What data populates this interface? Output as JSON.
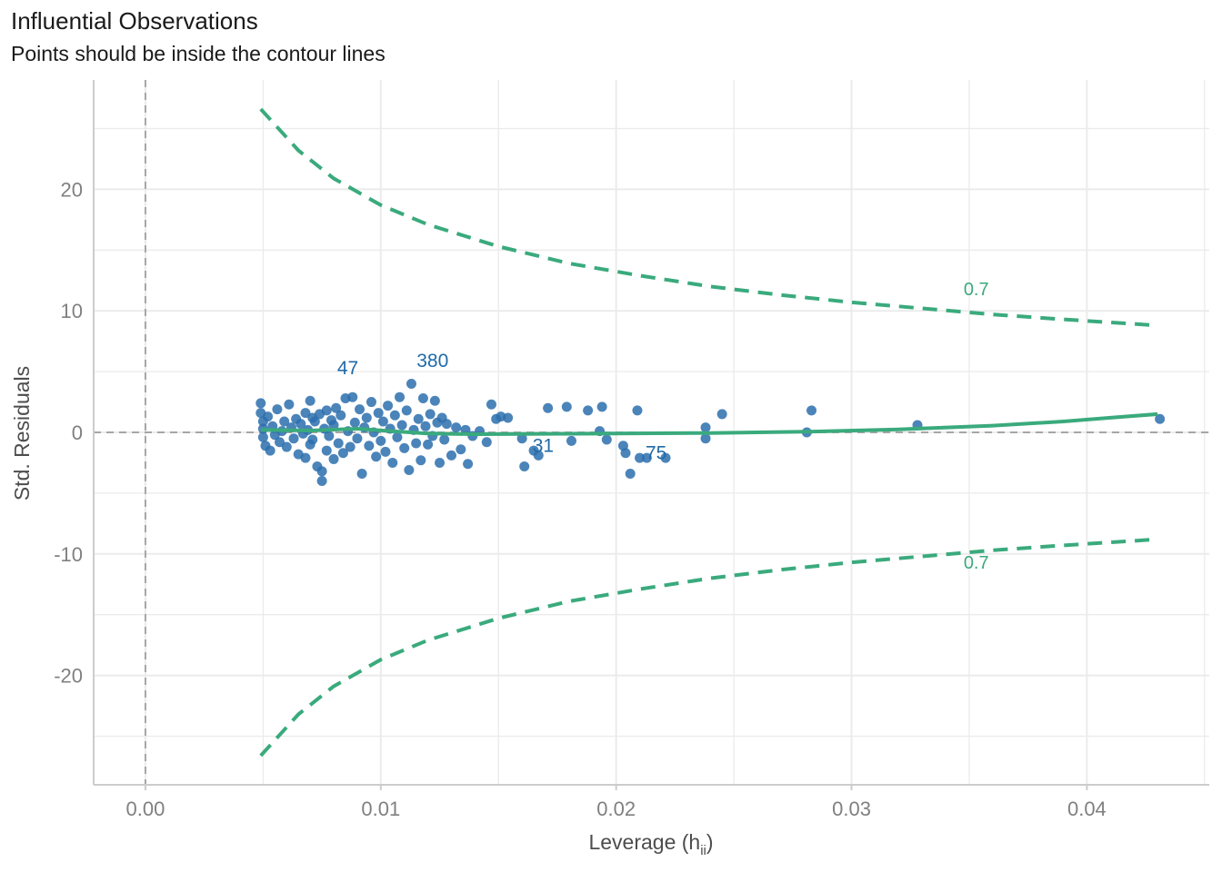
{
  "header": {
    "title": "Influential Observations",
    "subtitle": "Points should be inside the contour lines"
  },
  "chart_data": {
    "type": "scatter",
    "title": "Influential Observations",
    "subtitle": "Points should be inside the contour lines",
    "xlabel": "Leverage (h",
    "xlabel_subscript": "ii",
    "xlabel_close": ")",
    "ylabel": "Std. Residuals",
    "xlim": [
      -0.0022,
      0.0452
    ],
    "ylim": [
      -29,
      29
    ],
    "x_ticks": [
      0.0,
      0.01,
      0.02,
      0.03,
      0.04
    ],
    "x_tick_labels": [
      "0.00",
      "0.01",
      "0.02",
      "0.03",
      "0.04"
    ],
    "y_ticks": [
      -20,
      -10,
      0,
      10,
      20
    ],
    "y_tick_labels": [
      "-20",
      "-10",
      "0",
      "10",
      "20"
    ],
    "grid": true,
    "reference_lines": {
      "x": 0,
      "y": 0
    },
    "colors": {
      "points": "#2c6fad",
      "point_labels": "#1f6aa8",
      "smooth": "#3aaa7d",
      "contour": "#3aaa7d",
      "reference": "#a6a6a6",
      "grid": "#ebebeb"
    },
    "contour": {
      "level_label": "0.7",
      "x": [
        0.0049,
        0.0065,
        0.008,
        0.01,
        0.012,
        0.015,
        0.018,
        0.021,
        0.024,
        0.027,
        0.03,
        0.033,
        0.036,
        0.039,
        0.043
      ],
      "upper": [
        26.6,
        23.2,
        20.9,
        18.7,
        17.1,
        15.3,
        13.9,
        12.9,
        12.0,
        11.3,
        10.7,
        10.2,
        9.7,
        9.3,
        8.8
      ],
      "lower": [
        -26.6,
        -23.2,
        -20.9,
        -18.7,
        -17.1,
        -15.3,
        -13.9,
        -12.9,
        -12.0,
        -11.3,
        -10.7,
        -10.2,
        -9.7,
        -9.3,
        -8.8
      ],
      "label_positions": [
        {
          "text": "0.7",
          "x": 0.0353,
          "y": 11.3
        },
        {
          "text": "0.7",
          "x": 0.0353,
          "y": -11.2
        }
      ]
    },
    "smooth_line": {
      "x": [
        0.0049,
        0.007,
        0.009,
        0.0105,
        0.012,
        0.014,
        0.017,
        0.02,
        0.024,
        0.028,
        0.032,
        0.036,
        0.039,
        0.041,
        0.043
      ],
      "y": [
        0.2,
        0.15,
        0.3,
        0.1,
        -0.1,
        -0.15,
        -0.12,
        -0.1,
        -0.05,
        0.05,
        0.25,
        0.55,
        0.9,
        1.2,
        1.5
      ]
    },
    "points": [
      {
        "x": 0.0049,
        "y": 2.4
      },
      {
        "x": 0.0049,
        "y": 1.6
      },
      {
        "x": 0.005,
        "y": 0.9
      },
      {
        "x": 0.005,
        "y": 0.3
      },
      {
        "x": 0.005,
        "y": -0.4
      },
      {
        "x": 0.0051,
        "y": -1.1
      },
      {
        "x": 0.0052,
        "y": 1.3
      },
      {
        "x": 0.0053,
        "y": -1.5
      },
      {
        "x": 0.0054,
        "y": 0.5
      },
      {
        "x": 0.0055,
        "y": -0.2
      },
      {
        "x": 0.0056,
        "y": 1.9
      },
      {
        "x": 0.0057,
        "y": -0.8
      },
      {
        "x": 0.0058,
        "y": 0.1
      },
      {
        "x": 0.0059,
        "y": 0.9
      },
      {
        "x": 0.006,
        "y": -1.2
      },
      {
        "x": 0.0061,
        "y": 2.3
      },
      {
        "x": 0.0062,
        "y": 0.4
      },
      {
        "x": 0.0063,
        "y": -0.5
      },
      {
        "x": 0.0064,
        "y": 1.1
      },
      {
        "x": 0.0065,
        "y": -1.8
      },
      {
        "x": 0.0066,
        "y": 0.7
      },
      {
        "x": 0.0067,
        "y": -0.1
      },
      {
        "x": 0.0068,
        "y": 1.6
      },
      {
        "x": 0.0068,
        "y": -2.1
      },
      {
        "x": 0.0069,
        "y": 0.2
      },
      {
        "x": 0.007,
        "y": 2.6
      },
      {
        "x": 0.007,
        "y": -1.0
      },
      {
        "x": 0.0071,
        "y": 1.2
      },
      {
        "x": 0.0071,
        "y": -0.6
      },
      {
        "x": 0.0072,
        "y": 0.9
      },
      {
        "x": 0.0073,
        "y": -2.8
      },
      {
        "x": 0.0074,
        "y": 1.5
      },
      {
        "x": 0.0075,
        "y": -4.0
      },
      {
        "x": 0.0075,
        "y": -3.2
      },
      {
        "x": 0.0076,
        "y": 0.3
      },
      {
        "x": 0.0077,
        "y": -1.5
      },
      {
        "x": 0.0077,
        "y": 1.8
      },
      {
        "x": 0.0078,
        "y": -0.3
      },
      {
        "x": 0.0079,
        "y": 1.0
      },
      {
        "x": 0.008,
        "y": -2.2
      },
      {
        "x": 0.008,
        "y": 0.6
      },
      {
        "x": 0.0081,
        "y": 2.0
      },
      {
        "x": 0.0082,
        "y": -0.9
      },
      {
        "x": 0.0083,
        "y": 1.4
      },
      {
        "x": 0.0084,
        "y": -1.7
      },
      {
        "x": 0.0085,
        "y": 2.8
      },
      {
        "x": 0.0086,
        "y": 0.1
      },
      {
        "x": 0.0087,
        "y": -1.2
      },
      {
        "x": 0.0088,
        "y": 2.9
      },
      {
        "x": 0.0089,
        "y": 0.8
      },
      {
        "x": 0.009,
        "y": -0.5
      },
      {
        "x": 0.0091,
        "y": 1.9
      },
      {
        "x": 0.0092,
        "y": -3.4
      },
      {
        "x": 0.0093,
        "y": 0.4
      },
      {
        "x": 0.0094,
        "y": 1.2
      },
      {
        "x": 0.0095,
        "y": -1.1
      },
      {
        "x": 0.0096,
        "y": 2.5
      },
      {
        "x": 0.0097,
        "y": 0.0
      },
      {
        "x": 0.0098,
        "y": -2.0
      },
      {
        "x": 0.0099,
        "y": 1.6
      },
      {
        "x": 0.01,
        "y": -0.7
      },
      {
        "x": 0.0101,
        "y": 0.9
      },
      {
        "x": 0.0102,
        "y": -1.6
      },
      {
        "x": 0.0103,
        "y": 2.2
      },
      {
        "x": 0.0104,
        "y": 0.3
      },
      {
        "x": 0.0105,
        "y": -2.5
      },
      {
        "x": 0.0106,
        "y": 1.4
      },
      {
        "x": 0.0107,
        "y": -0.4
      },
      {
        "x": 0.0108,
        "y": 2.9
      },
      {
        "x": 0.0109,
        "y": 0.6
      },
      {
        "x": 0.011,
        "y": -1.3
      },
      {
        "x": 0.0111,
        "y": 1.8
      },
      {
        "x": 0.0112,
        "y": -3.1
      },
      {
        "x": 0.0113,
        "y": 4.0
      },
      {
        "x": 0.0114,
        "y": 0.2
      },
      {
        "x": 0.0115,
        "y": -0.9
      },
      {
        "x": 0.0116,
        "y": 1.1
      },
      {
        "x": 0.0117,
        "y": -2.3
      },
      {
        "x": 0.0118,
        "y": 2.8
      },
      {
        "x": 0.0119,
        "y": 0.5
      },
      {
        "x": 0.012,
        "y": -1.0
      },
      {
        "x": 0.0121,
        "y": 1.5
      },
      {
        "x": 0.0122,
        "y": -0.3
      },
      {
        "x": 0.0123,
        "y": 2.6
      },
      {
        "x": 0.0124,
        "y": 0.8
      },
      {
        "x": 0.0125,
        "y": -2.5
      },
      {
        "x": 0.0126,
        "y": 1.2
      },
      {
        "x": 0.0127,
        "y": -0.6
      },
      {
        "x": 0.0128,
        "y": 0.7
      },
      {
        "x": 0.013,
        "y": -1.9
      },
      {
        "x": 0.0132,
        "y": 0.4
      },
      {
        "x": 0.0134,
        "y": -1.4
      },
      {
        "x": 0.0136,
        "y": 0.2
      },
      {
        "x": 0.0137,
        "y": -2.6
      },
      {
        "x": 0.0139,
        "y": -0.3
      },
      {
        "x": 0.0142,
        "y": 0.1
      },
      {
        "x": 0.0145,
        "y": -0.8
      },
      {
        "x": 0.0147,
        "y": 2.3
      },
      {
        "x": 0.0149,
        "y": 1.1
      },
      {
        "x": 0.0151,
        "y": 1.3
      },
      {
        "x": 0.0154,
        "y": 1.2
      },
      {
        "x": 0.016,
        "y": -0.5
      },
      {
        "x": 0.0161,
        "y": -2.8
      },
      {
        "x": 0.0165,
        "y": -1.5
      },
      {
        "x": 0.0167,
        "y": -1.9
      },
      {
        "x": 0.0171,
        "y": 2.0
      },
      {
        "x": 0.0179,
        "y": 2.1
      },
      {
        "x": 0.0181,
        "y": -0.7
      },
      {
        "x": 0.0188,
        "y": 1.8
      },
      {
        "x": 0.0193,
        "y": 0.1
      },
      {
        "x": 0.0194,
        "y": 2.1
      },
      {
        "x": 0.0196,
        "y": -0.6
      },
      {
        "x": 0.0203,
        "y": -1.1
      },
      {
        "x": 0.0204,
        "y": -1.7
      },
      {
        "x": 0.0206,
        "y": -3.4
      },
      {
        "x": 0.0209,
        "y": 1.8
      },
      {
        "x": 0.021,
        "y": -2.1
      },
      {
        "x": 0.0213,
        "y": -2.1
      },
      {
        "x": 0.0221,
        "y": -2.1
      },
      {
        "x": 0.0238,
        "y": 0.4
      },
      {
        "x": 0.0238,
        "y": -0.5
      },
      {
        "x": 0.0245,
        "y": 1.5
      },
      {
        "x": 0.0281,
        "y": 0.0
      },
      {
        "x": 0.0283,
        "y": 1.8
      },
      {
        "x": 0.0328,
        "y": 0.6
      },
      {
        "x": 0.0431,
        "y": 1.1
      }
    ],
    "point_labels": [
      {
        "text": "47",
        "x": 0.0086,
        "y": 4.8
      },
      {
        "text": "380",
        "x": 0.0122,
        "y": 5.4
      },
      {
        "text": "31",
        "x": 0.0169,
        "y": -1.6
      },
      {
        "text": "75",
        "x": 0.0217,
        "y": -2.2
      }
    ]
  }
}
